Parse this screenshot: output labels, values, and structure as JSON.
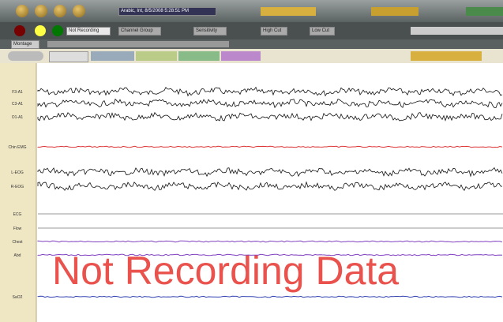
{
  "toolbar": {
    "timestamp": "Arabic, Int, 8/5/2008 5:28:51 PM"
  },
  "controls": {
    "status": "Not Recording",
    "channel_group": "Channel Group",
    "sensitivity": "Sensitivity",
    "high_cut": "High Cut",
    "low_cut": "Low Cut",
    "montage": "Montage"
  },
  "channels": [
    "F3-A1",
    "C3-A1",
    "O1-A1",
    "Chin EMG",
    "L-EOG",
    "R-EOG",
    "ECG",
    "Flow",
    "Chest",
    "Abd",
    "SaO2"
  ],
  "overlay": "Not Recording Data"
}
